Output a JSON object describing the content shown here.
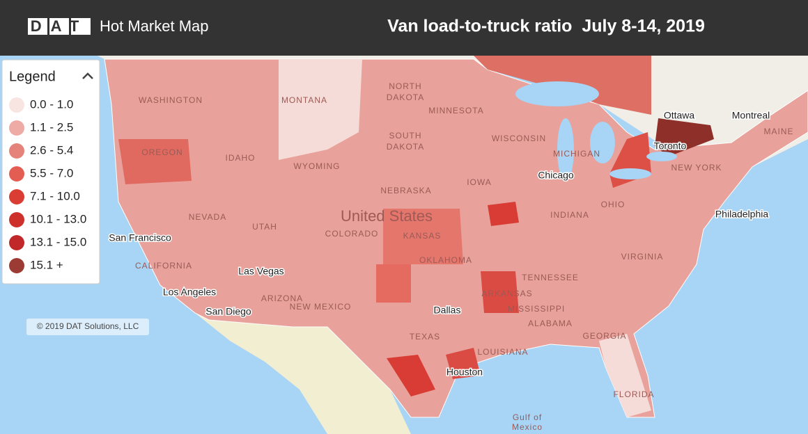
{
  "header": {
    "logo": "DAT",
    "app_name": "Hot Market Map",
    "title": "Van load-to-truck ratio  July 8-14, 2019"
  },
  "legend": {
    "title": "Legend",
    "items": [
      {
        "label": "0.0 - 1.0",
        "color": "#f8e4e1"
      },
      {
        "label": "1.1 - 2.5",
        "color": "#eeaba5"
      },
      {
        "label": "2.6 - 5.4",
        "color": "#e5837a"
      },
      {
        "label": "5.5 - 7.0",
        "color": "#e35d52"
      },
      {
        "label": "7.1 - 10.0",
        "color": "#da3d34"
      },
      {
        "label": "10.1 - 13.0",
        "color": "#ce302b"
      },
      {
        "label": "13.1 - 15.0",
        "color": "#c0282a"
      },
      {
        "label": "15.1 +",
        "color": "#9c3b33"
      }
    ]
  },
  "map_labels": [
    "WASHINGTON",
    "MONTANA",
    "NORTH",
    "DAKOTA",
    "MINNESOTA",
    "OREGON",
    "IDAHO",
    "SOUTH",
    "DAKOTA",
    "WISCONSIN",
    "MICHIGAN",
    "WYOMING",
    "NEBRASKA",
    "IOWA",
    "Chicago",
    "NEVADA",
    "UTAH",
    "COLORADO",
    "United States",
    "KANSAS",
    "San Francisco",
    "CALIFORNIA",
    "Las Vegas",
    "Los Angeles",
    "San Diego",
    "ARIZONA",
    "NEW MEXICO",
    "OKLAHOMA",
    "ARKANSAS",
    "Dallas",
    "TEXAS",
    "Houston",
    "LOUISIANA",
    "MISSISSIPPI",
    "ALABAMA",
    "GEORGIA",
    "FLORIDA",
    "Gulf of",
    "Mexico",
    "Ottawa",
    "Montreal",
    "Toronto",
    "NEW YORK",
    "MAINE",
    "Philadelphia",
    "INDIANA",
    "OHIO",
    "VIRGINIA",
    "TENNESSEE"
  ],
  "copyright": "© 2019 DAT Solutions, LLC"
}
